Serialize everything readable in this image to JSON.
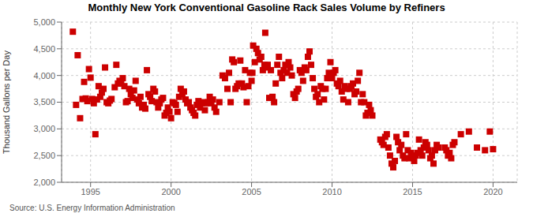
{
  "chart_data": {
    "type": "scatter",
    "title": "Monthly New York Conventional Gasoline Rack Sales Volume by Refiners",
    "ylabel": "Thousand Gallons per Day",
    "annotations": [
      "Source: U.S. Energy Information Administration"
    ],
    "color": "#cc0000",
    "marker": "square",
    "grid": true,
    "xlim": [
      1993.2,
      2021.5
    ],
    "ylim": [
      2000,
      5000
    ],
    "xticks": [
      1995,
      2000,
      2005,
      2010,
      2015,
      2020
    ],
    "yticks": [
      {
        "value": 2000,
        "label": "2,000"
      },
      {
        "value": 2500,
        "label": "2,500"
      },
      {
        "value": 3000,
        "label": "3,000"
      },
      {
        "value": 3500,
        "label": "3,500"
      },
      {
        "value": 4000,
        "label": "4,000"
      },
      {
        "value": 4500,
        "label": "4,500"
      },
      {
        "value": 5000,
        "label": "5,000"
      }
    ],
    "x": [
      1993.9,
      1994.1,
      1994.2,
      1994.35,
      1994.5,
      1994.6,
      1994.7,
      1994.8,
      1994.9,
      1995.0,
      1995.1,
      1995.2,
      1995.3,
      1995.4,
      1995.5,
      1995.6,
      1995.7,
      1995.8,
      1995.9,
      1996.0,
      1996.1,
      1996.2,
      1996.3,
      1996.5,
      1996.6,
      1996.7,
      1996.8,
      1996.9,
      1997.0,
      1997.1,
      1997.2,
      1997.3,
      1997.4,
      1997.5,
      1997.6,
      1997.7,
      1997.8,
      1997.9,
      1998.0,
      1998.1,
      1998.2,
      1998.3,
      1998.4,
      1998.5,
      1998.6,
      1998.7,
      1998.8,
      1998.9,
      1999.0,
      1999.1,
      1999.2,
      1999.3,
      1999.4,
      1999.5,
      1999.6,
      1999.7,
      1999.8,
      1999.9,
      2000.0,
      2000.1,
      2000.2,
      2000.3,
      2000.4,
      2000.5,
      2000.6,
      2000.7,
      2000.8,
      2000.9,
      2001.0,
      2001.1,
      2001.2,
      2001.3,
      2001.4,
      2001.5,
      2001.6,
      2001.7,
      2001.8,
      2001.9,
      2002.0,
      2002.1,
      2002.2,
      2002.3,
      2002.4,
      2002.5,
      2002.6,
      2002.7,
      2002.8,
      2003.0,
      2003.2,
      2003.35,
      2003.5,
      2003.6,
      2003.7,
      2003.8,
      2003.9,
      2004.0,
      2004.1,
      2004.2,
      2004.3,
      2004.4,
      2004.5,
      2004.6,
      2004.7,
      2004.8,
      2004.9,
      2005.0,
      2005.05,
      2005.1,
      2005.2,
      2005.3,
      2005.4,
      2005.5,
      2005.6,
      2005.7,
      2005.8,
      2005.85,
      2005.9,
      2006.0,
      2006.1,
      2006.2,
      2006.3,
      2006.4,
      2006.5,
      2006.6,
      2006.7,
      2006.8,
      2006.9,
      2007.0,
      2007.1,
      2007.2,
      2007.3,
      2007.4,
      2007.5,
      2007.6,
      2007.7,
      2007.8,
      2007.9,
      2008.0,
      2008.1,
      2008.2,
      2008.3,
      2008.4,
      2008.5,
      2008.6,
      2008.7,
      2008.8,
      2008.9,
      2009.0,
      2009.1,
      2009.2,
      2009.3,
      2009.4,
      2009.5,
      2009.6,
      2009.7,
      2009.8,
      2009.9,
      2010.0,
      2010.1,
      2010.2,
      2010.3,
      2010.4,
      2010.5,
      2010.6,
      2010.7,
      2010.8,
      2010.9,
      2011.0,
      2011.1,
      2011.2,
      2011.3,
      2011.4,
      2011.5,
      2011.6,
      2011.7,
      2011.8,
      2011.9,
      2012.0,
      2012.1,
      2012.2,
      2012.3,
      2012.4,
      2012.5,
      2013.0,
      2013.1,
      2013.2,
      2013.3,
      2013.4,
      2013.5,
      2013.6,
      2013.7,
      2013.8,
      2013.9,
      2014.0,
      2014.1,
      2014.2,
      2014.3,
      2014.4,
      2014.5,
      2014.6,
      2014.7,
      2014.8,
      2014.9,
      2015.0,
      2015.1,
      2015.2,
      2015.3,
      2015.4,
      2015.5,
      2015.6,
      2015.7,
      2015.8,
      2015.9,
      2016.0,
      2016.1,
      2016.2,
      2016.3,
      2016.4,
      2016.5,
      2016.6,
      2017.0,
      2017.1,
      2017.2,
      2017.3,
      2017.4,
      2017.5,
      2017.6,
      2018.0,
      2018.5,
      2019.0,
      2019.5,
      2019.8,
      2020.0
    ],
    "values": [
      4820,
      3450,
      4380,
      3200,
      3560,
      3880,
      3570,
      3520,
      4120,
      3960,
      3560,
      3480,
      2900,
      3550,
      3800,
      3600,
      3680,
      3750,
      4150,
      3500,
      3480,
      3530,
      3560,
      3780,
      4200,
      3850,
      3900,
      3850,
      3950,
      3800,
      3500,
      3520,
      3750,
      3650,
      3580,
      3720,
      3900,
      3550,
      3480,
      3600,
      3400,
      3450,
      3380,
      4100,
      3650,
      3600,
      3520,
      3750,
      3700,
      3500,
      3400,
      3480,
      3550,
      3580,
      3250,
      3300,
      3400,
      3320,
      3200,
      3500,
      3480,
      3450,
      3320,
      3600,
      3750,
      3650,
      3700,
      3550,
      3480,
      3500,
      3400,
      3350,
      3300,
      3250,
      3450,
      3520,
      3400,
      3480,
      3500,
      3350,
      3480,
      3500,
      3600,
      3480,
      3550,
      3400,
      3320,
      3500,
      4000,
      3950,
      3750,
      4050,
      3500,
      4300,
      4250,
      3750,
      3800,
      3850,
      4280,
      3850,
      3780,
      4100,
      3500,
      3800,
      4050,
      3900,
      4050,
      4560,
      4250,
      4500,
      4420,
      4300,
      4350,
      4100,
      4200,
      4800,
      4150,
      4200,
      3580,
      4100,
      3600,
      3500,
      3850,
      4200,
      4350,
      4050,
      3950,
      4100,
      4200,
      4050,
      4250,
      4150,
      4000,
      3650,
      3580,
      3700,
      3750,
      4100,
      4050,
      3900,
      4150,
      4100,
      4350,
      4450,
      4200,
      3950,
      3750,
      3600,
      3650,
      3500,
      3800,
      3750,
      3550,
      3750,
      3950,
      4050,
      4250,
      3950,
      4050,
      4100,
      3850,
      3800,
      3900,
      3700,
      3550,
      3800,
      3750,
      3500,
      3750,
      3800,
      3850,
      3650,
      3700,
      3900,
      4050,
      3500,
      3650,
      3500,
      3250,
      3300,
      3450,
      3350,
      3250,
      2800,
      2750,
      2700,
      2850,
      2900,
      2650,
      2500,
      2350,
      2280,
      2400,
      2850,
      2750,
      2600,
      2700,
      2500,
      2450,
      2900,
      2600,
      2450,
      2550,
      2500,
      2400,
      2500,
      2550,
      2800,
      2600,
      2500,
      2650,
      2750,
      2700,
      2600,
      2450,
      2500,
      2350,
      2600,
      2700,
      2650,
      2650,
      2600,
      2500,
      2550,
      2450,
      2700,
      2750,
      2900,
      2950,
      2650,
      2600,
      2950,
      2620
    ]
  }
}
